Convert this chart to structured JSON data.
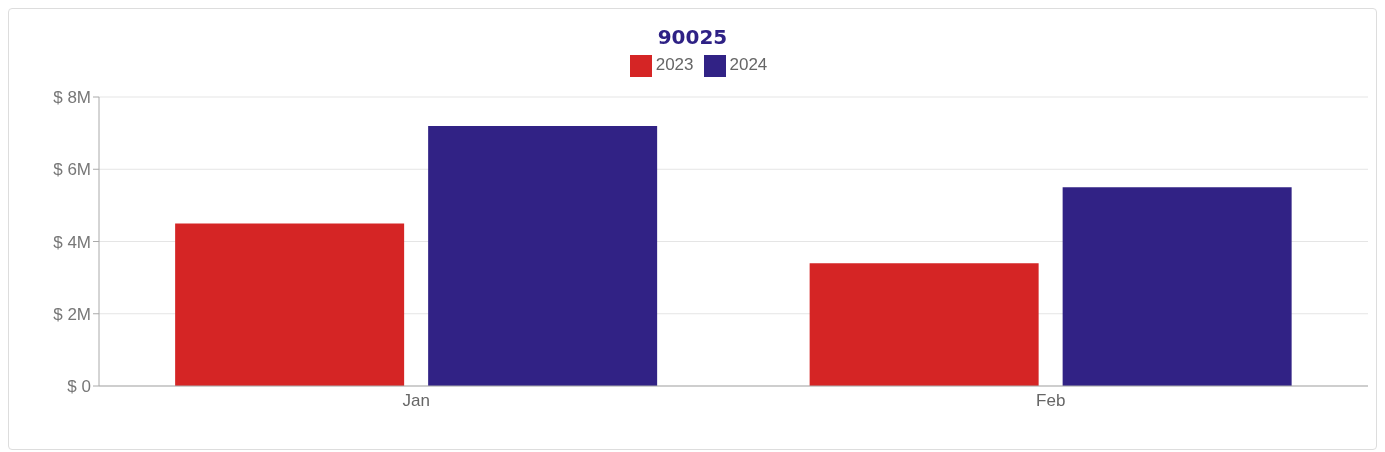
{
  "chart_data": {
    "type": "bar",
    "title": "90025",
    "categories": [
      "Jan",
      "Feb"
    ],
    "series": [
      {
        "name": "2023",
        "color": "#d52525",
        "values": [
          4.5,
          3.4
        ]
      },
      {
        "name": "2024",
        "color": "#312285",
        "values": [
          7.2,
          5.5
        ]
      }
    ],
    "ylim": [
      0,
      8
    ],
    "yticks": [
      {
        "value": 0,
        "label": "$ 0"
      },
      {
        "value": 2,
        "label": "$ 2M"
      },
      {
        "value": 4,
        "label": "$ 4M"
      },
      {
        "value": 6,
        "label": "$ 6M"
      },
      {
        "value": 8,
        "label": "$ 8M"
      }
    ],
    "grid": "y",
    "legend": "top"
  }
}
